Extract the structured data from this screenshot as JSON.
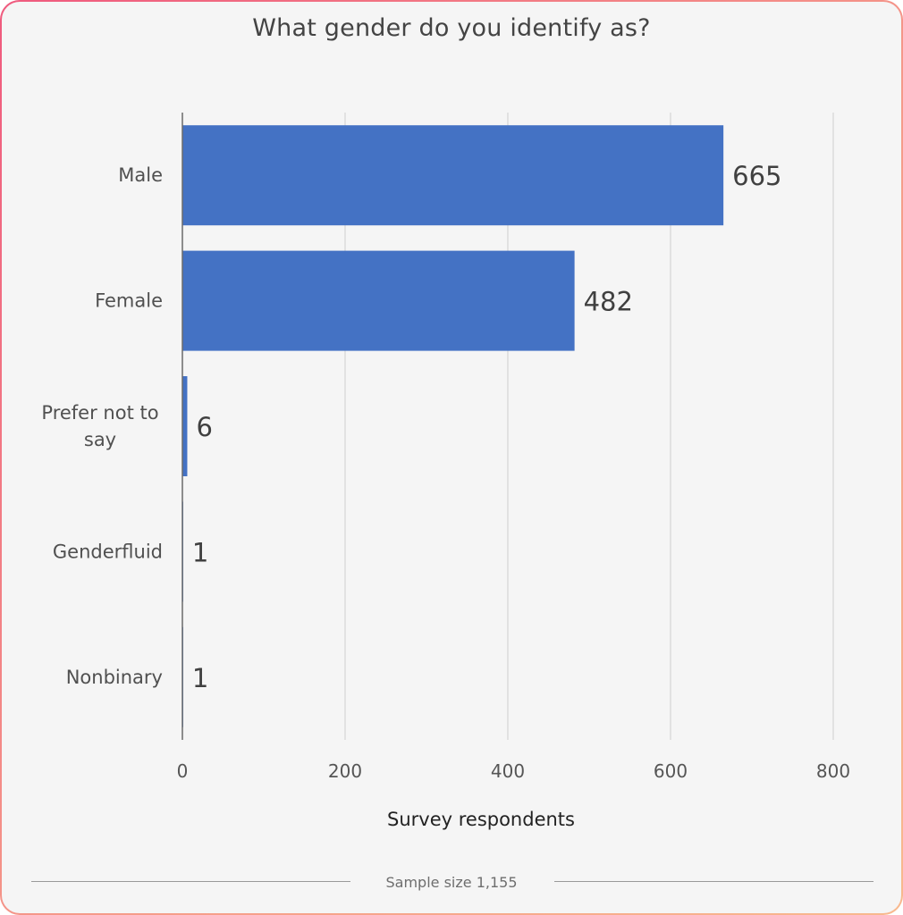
{
  "chart_data": {
    "type": "bar",
    "orientation": "horizontal",
    "title": "What gender do you identify as?",
    "categories": [
      "Male",
      "Female",
      "Prefer not to say",
      "Genderfluid",
      "Nonbinary"
    ],
    "values": [
      665,
      482,
      6,
      1,
      1
    ],
    "data_labels": [
      "665",
      "482",
      "6",
      "1",
      "1"
    ],
    "xlabel": "Survey respondents",
    "ylabel": "",
    "xlim": [
      0,
      800
    ],
    "xticks": [
      0,
      200,
      400,
      600,
      800
    ],
    "grid": "vertical",
    "legend": "none",
    "bar_color": "#4472c4"
  },
  "footer": {
    "sample_size": "Sample size 1,155"
  }
}
